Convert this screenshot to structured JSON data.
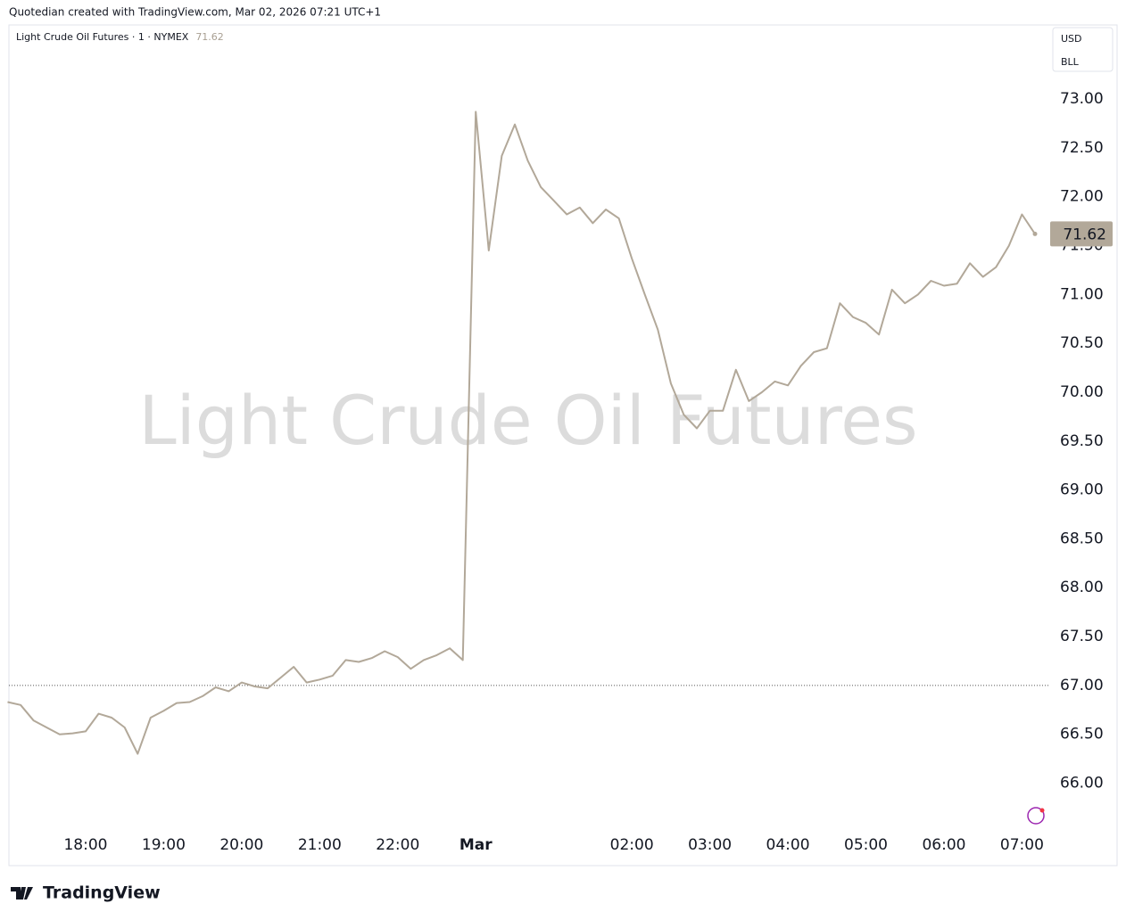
{
  "header": "Quotedian created with TradingView.com, Mar 02, 2026 07:21 UTC+1",
  "brand": "TradingView",
  "chart_data": {
    "type": "line",
    "symbol": "Light Crude Oil Futures · 1 · NYMEX",
    "watermark": "Light Crude Oil Futures",
    "currency": "USD",
    "unit": "BLL",
    "x": [
      "17:00",
      "17:10",
      "17:20",
      "17:30",
      "17:40",
      "17:50",
      "18:00",
      "18:10",
      "18:20",
      "18:30",
      "18:40",
      "18:50",
      "19:00",
      "19:10",
      "19:20",
      "19:30",
      "19:40",
      "19:50",
      "20:00",
      "20:10",
      "20:20",
      "20:30",
      "20:40",
      "20:50",
      "21:00",
      "21:10",
      "21:20",
      "21:30",
      "21:40",
      "21:50",
      "22:00",
      "22:10",
      "22:20",
      "22:30",
      "22:40",
      "22:50",
      "00:00",
      "00:10",
      "00:20",
      "00:30",
      "00:40",
      "00:50",
      "01:00",
      "01:10",
      "01:20",
      "01:30",
      "01:40",
      "01:50",
      "02:00",
      "02:10",
      "02:20",
      "02:30",
      "02:40",
      "02:50",
      "03:00",
      "03:10",
      "03:20",
      "03:30",
      "03:40",
      "03:50",
      "04:00",
      "04:10",
      "04:20",
      "04:30",
      "04:40",
      "04:50",
      "05:00",
      "05:10",
      "05:20",
      "05:30",
      "05:40",
      "05:50",
      "06:00",
      "06:10",
      "06:20",
      "06:30",
      "06:40",
      "06:50",
      "07:00",
      "07:10"
    ],
    "series": [
      {
        "name": "Light Crude Oil Futures",
        "color": "#b2a899",
        "values": [
          66.83,
          66.8,
          66.64,
          66.57,
          66.5,
          66.51,
          66.53,
          66.71,
          66.67,
          66.57,
          66.3,
          66.67,
          66.74,
          66.82,
          66.83,
          66.89,
          66.98,
          66.94,
          67.03,
          66.99,
          66.97,
          67.08,
          67.19,
          67.03,
          67.06,
          67.1,
          67.26,
          67.24,
          67.28,
          67.35,
          67.29,
          67.17,
          67.26,
          67.31,
          67.38,
          67.26,
          72.87,
          71.45,
          72.42,
          72.74,
          72.37,
          72.1,
          71.96,
          71.82,
          71.89,
          71.73,
          71.87,
          71.78,
          71.37,
          71.0,
          70.64,
          70.09,
          69.77,
          69.63,
          69.81,
          69.81,
          70.23,
          69.91,
          70.0,
          70.11,
          70.07,
          70.27,
          70.41,
          70.45,
          70.91,
          70.77,
          70.71,
          70.59,
          71.05,
          70.91,
          71.0,
          71.14,
          71.09,
          71.11,
          71.32,
          71.18,
          71.28,
          71.5,
          71.82,
          71.62
        ]
      }
    ],
    "prev_close": 67.0,
    "ylim": [
      65.53,
      73.74
    ],
    "yticks": [
      {
        "value": 66,
        "label": "66.00"
      },
      {
        "value": 66.5,
        "label": "66.50"
      },
      {
        "value": 67,
        "label": "67.00"
      },
      {
        "value": 67.5,
        "label": "67.50"
      },
      {
        "value": 68,
        "label": "68.00"
      },
      {
        "value": 68.5,
        "label": "68.50"
      },
      {
        "value": 69,
        "label": "69.00"
      },
      {
        "value": 69.5,
        "label": "69.50"
      },
      {
        "value": 70,
        "label": "70.00"
      },
      {
        "value": 70.5,
        "label": "70.50"
      },
      {
        "value": 71,
        "label": "71.00"
      },
      {
        "value": 71.5,
        "label": "71.50"
      },
      {
        "value": 72,
        "label": "72.00"
      },
      {
        "value": 72.5,
        "label": "72.50"
      },
      {
        "value": 73,
        "label": "73.00"
      }
    ],
    "xticks": [
      "18:00",
      "19:00",
      "20:00",
      "21:00",
      "22:00",
      {
        "value": "00:00",
        "label": "Mar"
      },
      "02:00",
      "03:00",
      "04:00",
      "05:00",
      "06:00",
      "07:00"
    ],
    "grid": false
  }
}
